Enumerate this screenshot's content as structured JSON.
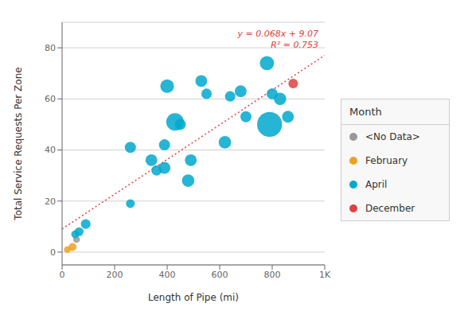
{
  "chart_data": {
    "type": "scatter",
    "xlabel": "Length of Pipe (mi)",
    "ylabel": "Total Service Requests Per Zone",
    "xlim": [
      0,
      1000
    ],
    "ylim": [
      -5,
      90
    ],
    "xticks": [
      0,
      200,
      400,
      600,
      800,
      {
        "value": 1000,
        "label": "1K"
      }
    ],
    "yticks": [
      0,
      20,
      40,
      60,
      80
    ],
    "grid": true,
    "legend": "right",
    "legend_title": "Month",
    "annotation": "y = 0.068x + 9.07\nR² = 0.753",
    "series": [
      {
        "name": "<No Data>",
        "color": "#999999",
        "x": [
          55
        ],
        "values": [
          5
        ],
        "size": [
          30
        ]
      },
      {
        "name": "February",
        "color": "#f0a020",
        "x": [
          20,
          40
        ],
        "values": [
          1,
          2
        ],
        "size": [
          30,
          40
        ]
      },
      {
        "name": "April",
        "color": "#00a8cc",
        "x": [
          50,
          65,
          90,
          260,
          260,
          340,
          360,
          390,
          390,
          400,
          430,
          450,
          480,
          490,
          530,
          550,
          620,
          640,
          680,
          700,
          780,
          790,
          800,
          830,
          860
        ],
        "values": [
          7,
          8,
          11,
          19,
          41,
          36,
          32,
          42,
          33,
          65,
          51,
          50,
          28,
          36,
          67,
          62,
          43,
          61,
          63,
          53,
          74,
          50,
          62,
          60,
          53
        ],
        "size": [
          40,
          50,
          60,
          50,
          80,
          90,
          70,
          80,
          90,
          120,
          200,
          80,
          100,
          90,
          90,
          70,
          100,
          70,
          90,
          80,
          130,
          400,
          80,
          100,
          90
        ]
      },
      {
        "name": "December",
        "color": "#e04040",
        "x": [
          880
        ],
        "values": [
          66
        ],
        "size": [
          60
        ]
      }
    ],
    "trend_line": {
      "x": [
        0,
        1000
      ],
      "values": [
        9.07,
        77.07
      ],
      "color": "#e04040",
      "line_style": "dotted"
    }
  }
}
